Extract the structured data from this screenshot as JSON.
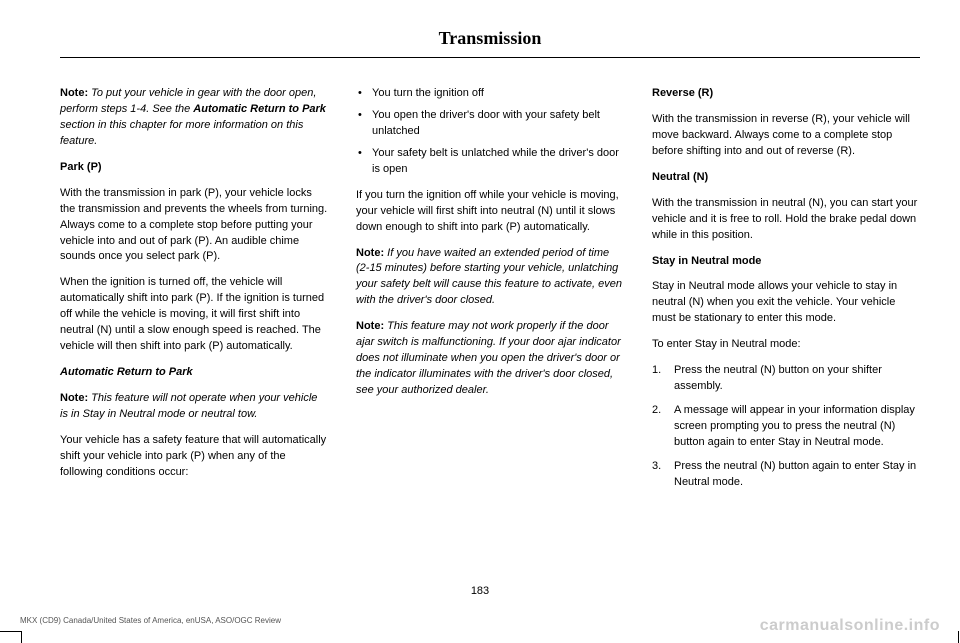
{
  "header": {
    "title": "Transmission"
  },
  "col1": {
    "p1_note": "Note:",
    "p1_text1": " To put your vehicle in gear with the door open, perform steps 1-4. See the ",
    "p1_bold": "Automatic Return to Park",
    "p1_text2": " section in this chapter for more information on this feature.",
    "h1": "Park (P)",
    "p2": "With the transmission in park (P), your vehicle locks the transmission and prevents the wheels from turning. Always come to a complete stop before putting your vehicle into and out of park (P). An audible chime sounds once you select park (P).",
    "p3": "When the ignition is turned off, the vehicle will automatically shift into park (P). If the ignition is turned off while the vehicle is moving, it will first shift into neutral (N) until a slow enough speed is reached. The vehicle will then shift into park (P) automatically.",
    "h2": "Automatic Return to Park",
    "p4_note": "Note:",
    "p4_text": " This feature will not operate when your vehicle is in Stay in Neutral mode or neutral tow.",
    "p5": "Your vehicle has a safety feature that will automatically shift your vehicle into park (P) when any of the following conditions occur:"
  },
  "col2": {
    "bullets": [
      "You turn the ignition off",
      "You open the driver's door with your safety belt unlatched",
      "Your safety belt is unlatched while the driver's door is open"
    ],
    "p1": "If you turn the ignition off while your vehicle is moving, your vehicle will first shift into neutral (N) until it slows down enough to shift into park (P) automatically.",
    "p2_note": "Note:",
    "p2_text": " If you have waited an extended period of time (2-15 minutes) before starting your vehicle, unlatching your safety belt will cause this feature to activate, even with the driver's door closed.",
    "p3_note": "Note:",
    "p3_text": " This feature may not work properly if the door ajar switch is malfunctioning. If your door ajar indicator does not illuminate when you open the driver's door or the indicator illuminates with the driver's door closed, see your authorized dealer."
  },
  "col3": {
    "h1": "Reverse (R)",
    "p1": "With the transmission in reverse (R), your vehicle will move backward. Always come to a complete stop before shifting into and out of reverse (R).",
    "h2": "Neutral (N)",
    "p2": "With the transmission in neutral (N), you can start your vehicle and it is free to roll. Hold the brake pedal down while in this position.",
    "h3": "Stay in Neutral mode",
    "p3": "Stay in Neutral mode allows your vehicle to stay in neutral (N) when you exit the vehicle. Your vehicle must be stationary to enter this mode.",
    "p4": "To enter Stay in Neutral mode:",
    "ol": [
      "Press the neutral (N) button on your shifter assembly.",
      "A message will appear in your information display screen prompting you to press the neutral (N) button again to enter Stay in Neutral mode.",
      "Press the neutral (N) button again to enter Stay in Neutral mode."
    ]
  },
  "pageNum": "183",
  "footer": "MKX (CD9) Canada/United States of America, enUSA, ASO/OGC Review",
  "watermark": "carmanualsonline.info"
}
